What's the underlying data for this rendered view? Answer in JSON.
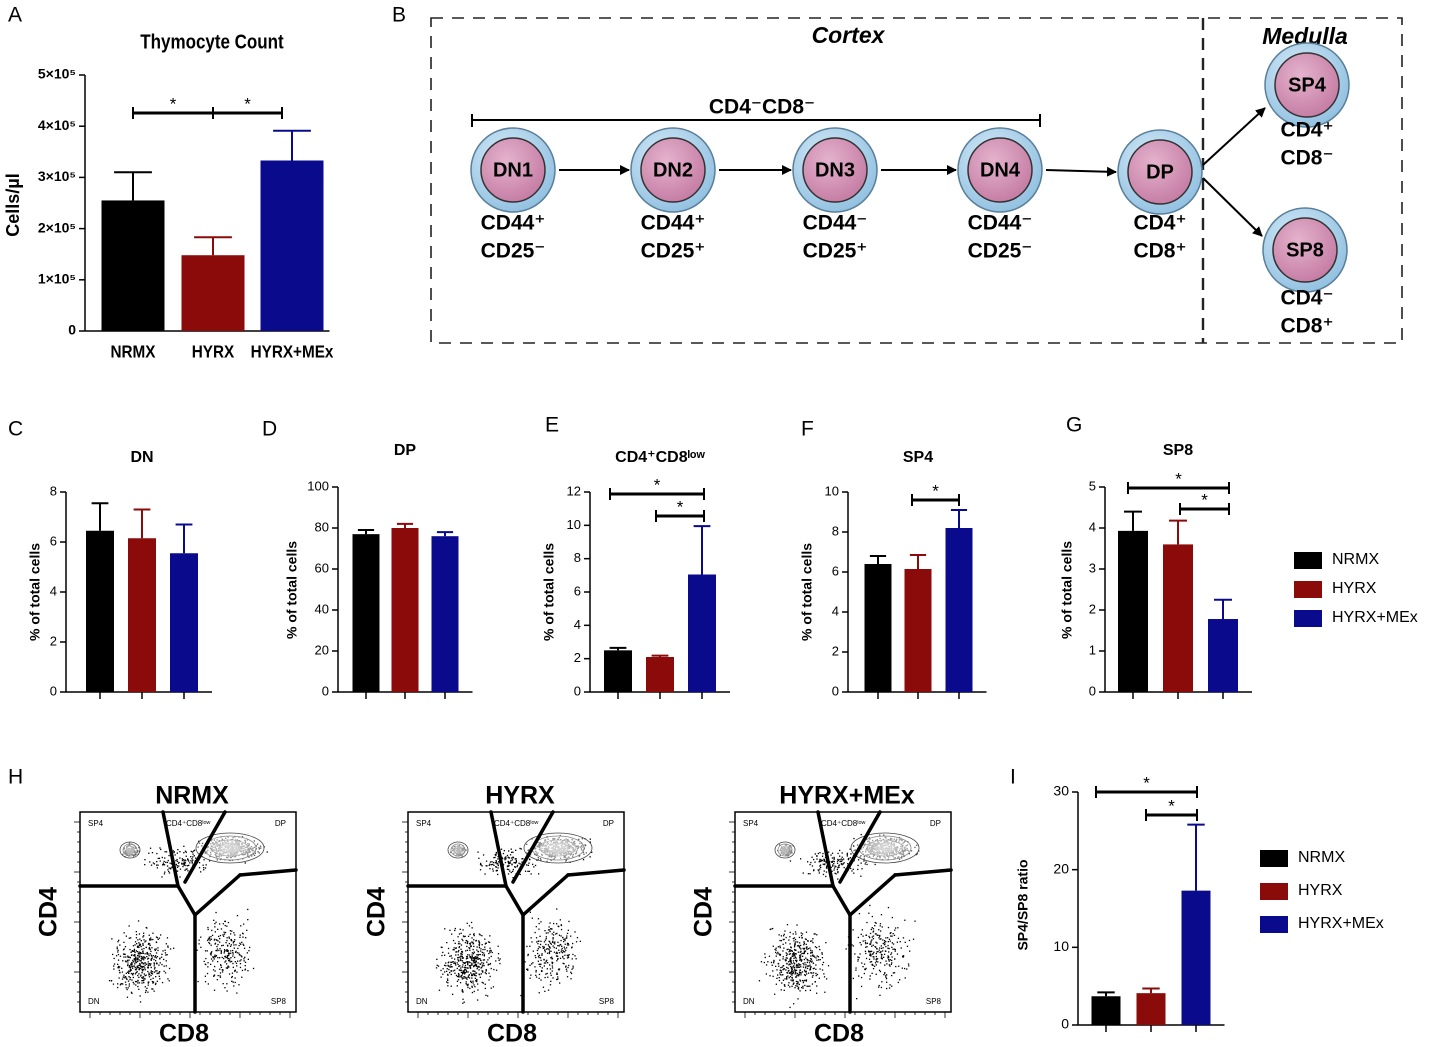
{
  "chart_data": [
    {
      "panel": "A",
      "type": "bar",
      "title": "Thymocyte Count",
      "y_label": "Cells/µl",
      "categories": [
        "NRMX",
        "HYRX",
        "HYRX+MEx"
      ],
      "values": [
        255000,
        148000,
        333000
      ],
      "errors": [
        55000,
        35000,
        58000
      ],
      "colors": [
        "#000000",
        "#8b0a0a",
        "#0a0a8c"
      ],
      "ylim": [
        0,
        500000
      ],
      "yticks": [
        0,
        {
          "value": 100000,
          "label": "1×10⁵"
        },
        {
          "value": 200000,
          "label": "2×10⁵"
        },
        {
          "value": 300000,
          "label": "3×10⁵"
        },
        {
          "value": 400000,
          "label": "4×10⁵"
        },
        {
          "value": 500000,
          "label": "5×10⁵"
        }
      ],
      "annotations": [
        "*",
        "*"
      ]
    },
    {
      "panel": "C",
      "type": "bar",
      "title": "DN",
      "y_label": "% of total cells",
      "categories": [
        null,
        null,
        null
      ],
      "values": [
        6.45,
        6.15,
        5.55
      ],
      "errors": [
        1.1,
        1.15,
        1.15
      ],
      "colors": [
        "#000000",
        "#8b0a0a",
        "#0a0a8c"
      ],
      "ylim": [
        0,
        8
      ],
      "yticks": [
        0,
        2,
        4,
        6,
        8
      ]
    },
    {
      "panel": "D",
      "type": "bar",
      "title": "DP",
      "y_label": "% of total cells",
      "categories": [
        null,
        null,
        null
      ],
      "values": [
        77,
        80,
        76
      ],
      "errors": [
        2,
        2,
        2
      ],
      "colors": [
        "#000000",
        "#8b0a0a",
        "#0a0a8c"
      ],
      "ylim": [
        0,
        100
      ],
      "yticks": [
        0,
        20,
        40,
        60,
        80,
        100
      ]
    },
    {
      "panel": "E",
      "type": "bar",
      "title": "CD4⁺CD8ˡᵒʷ",
      "y_label": "% of total cells",
      "categories": [
        null,
        null,
        null
      ],
      "values": [
        2.5,
        2.1,
        7.05
      ],
      "errors": [
        0.15,
        0.08,
        2.9
      ],
      "colors": [
        "#000000",
        "#8b0a0a",
        "#0a0a8c"
      ],
      "ylim": [
        0,
        12
      ],
      "yticks": [
        0,
        2,
        4,
        6,
        8,
        10,
        12
      ],
      "annotations": [
        "*",
        "*"
      ]
    },
    {
      "panel": "F",
      "type": "bar",
      "title": "SP4",
      "y_label": "% of total cells",
      "categories": [
        null,
        null,
        null
      ],
      "values": [
        6.4,
        6.15,
        8.2
      ],
      "errors": [
        0.4,
        0.7,
        0.9
      ],
      "colors": [
        "#000000",
        "#8b0a0a",
        "#0a0a8c"
      ],
      "ylim": [
        0,
        10
      ],
      "yticks": [
        0,
        2,
        4,
        6,
        8,
        10
      ],
      "annotations": [
        "*"
      ]
    },
    {
      "panel": "G",
      "type": "bar",
      "title": "SP8",
      "y_label": "% of total cells",
      "categories": [
        null,
        null,
        null
      ],
      "values": [
        3.93,
        3.6,
        1.78
      ],
      "errors": [
        0.47,
        0.58,
        0.47
      ],
      "colors": [
        "#000000",
        "#8b0a0a",
        "#0a0a8c"
      ],
      "ylim": [
        0,
        5
      ],
      "yticks": [
        0,
        1,
        2,
        3,
        4,
        5
      ],
      "annotations": [
        "*",
        "*"
      ],
      "legend": [
        "NRMX",
        "HYRX",
        "HYRX+MEx"
      ]
    },
    {
      "panel": "I",
      "type": "bar",
      "y_label": "SP4/SP8 ratio",
      "categories": [
        null,
        null,
        null
      ],
      "values": [
        3.7,
        4.1,
        17.3
      ],
      "errors": [
        0.5,
        0.6,
        8.5
      ],
      "colors": [
        "#000000",
        "#8b0a0a",
        "#0a0a8c"
      ],
      "ylim": [
        0,
        30
      ],
      "yticks": [
        0,
        10,
        20,
        30
      ],
      "annotations": [
        "*",
        "*"
      ],
      "legend": [
        "NRMX",
        "HYRX",
        "HYRX+MEx"
      ]
    }
  ],
  "diagram": {
    "panel": "B",
    "regions": [
      "Cortex",
      "Medulla"
    ],
    "group_label": "CD4⁻CD8⁻",
    "nodes": [
      {
        "label": "DN1",
        "markers": [
          "CD44⁺",
          "CD25⁻"
        ]
      },
      {
        "label": "DN2",
        "markers": [
          "CD44⁺",
          "CD25⁺"
        ]
      },
      {
        "label": "DN3",
        "markers": [
          "CD44⁻",
          "CD25⁺"
        ]
      },
      {
        "label": "DN4",
        "markers": [
          "CD44⁻",
          "CD25⁻"
        ]
      },
      {
        "label": "DP",
        "markers": [
          "CD4⁺",
          "CD8⁺"
        ]
      },
      {
        "label": "SP4",
        "markers": [
          "CD4⁺",
          "CD8⁻"
        ]
      },
      {
        "label": "SP8",
        "markers": [
          "CD4⁻",
          "CD8⁺"
        ]
      }
    ]
  },
  "flow": {
    "panel": "H",
    "x_label": "CD8",
    "y_label": "CD4",
    "plots": [
      {
        "title": "NRMX"
      },
      {
        "title": "HYRX"
      },
      {
        "title": "HYRX+MEx"
      }
    ],
    "gates": [
      "SP4",
      "CD4⁺CD8ˡᵒʷ",
      "DP",
      "DN",
      "SP8"
    ]
  }
}
